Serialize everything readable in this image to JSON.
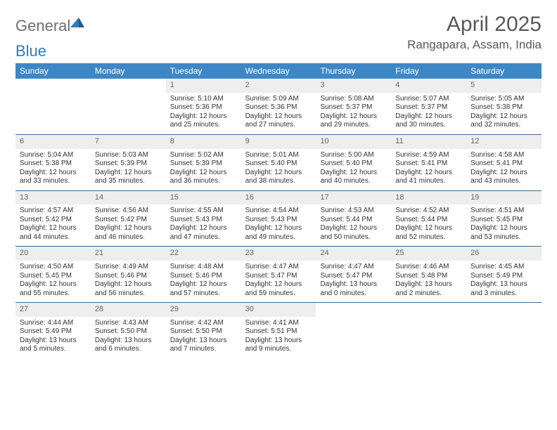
{
  "logo": {
    "word1": "General",
    "word2": "Blue"
  },
  "title": "April 2025",
  "location": "Rangapara, Assam, India",
  "header_bg": "#3d87c7",
  "header_text_color": "#ffffff",
  "daynum_bg": "#eeeeee",
  "week_divider_color": "#3d6a93",
  "text_color": "#333333",
  "title_color": "#595959",
  "logo_gray": "#6e6e6e",
  "logo_blue": "#2f7bbf",
  "weekdays": [
    "Sunday",
    "Monday",
    "Tuesday",
    "Wednesday",
    "Thursday",
    "Friday",
    "Saturday"
  ],
  "weeks": [
    [
      null,
      null,
      {
        "n": "1",
        "sr": "Sunrise: 5:10 AM",
        "ss": "Sunset: 5:36 PM",
        "dl": "Daylight: 12 hours and 25 minutes."
      },
      {
        "n": "2",
        "sr": "Sunrise: 5:09 AM",
        "ss": "Sunset: 5:36 PM",
        "dl": "Daylight: 12 hours and 27 minutes."
      },
      {
        "n": "3",
        "sr": "Sunrise: 5:08 AM",
        "ss": "Sunset: 5:37 PM",
        "dl": "Daylight: 12 hours and 29 minutes."
      },
      {
        "n": "4",
        "sr": "Sunrise: 5:07 AM",
        "ss": "Sunset: 5:37 PM",
        "dl": "Daylight: 12 hours and 30 minutes."
      },
      {
        "n": "5",
        "sr": "Sunrise: 5:05 AM",
        "ss": "Sunset: 5:38 PM",
        "dl": "Daylight: 12 hours and 32 minutes."
      }
    ],
    [
      {
        "n": "6",
        "sr": "Sunrise: 5:04 AM",
        "ss": "Sunset: 5:38 PM",
        "dl": "Daylight: 12 hours and 33 minutes."
      },
      {
        "n": "7",
        "sr": "Sunrise: 5:03 AM",
        "ss": "Sunset: 5:39 PM",
        "dl": "Daylight: 12 hours and 35 minutes."
      },
      {
        "n": "8",
        "sr": "Sunrise: 5:02 AM",
        "ss": "Sunset: 5:39 PM",
        "dl": "Daylight: 12 hours and 36 minutes."
      },
      {
        "n": "9",
        "sr": "Sunrise: 5:01 AM",
        "ss": "Sunset: 5:40 PM",
        "dl": "Daylight: 12 hours and 38 minutes."
      },
      {
        "n": "10",
        "sr": "Sunrise: 5:00 AM",
        "ss": "Sunset: 5:40 PM",
        "dl": "Daylight: 12 hours and 40 minutes."
      },
      {
        "n": "11",
        "sr": "Sunrise: 4:59 AM",
        "ss": "Sunset: 5:41 PM",
        "dl": "Daylight: 12 hours and 41 minutes."
      },
      {
        "n": "12",
        "sr": "Sunrise: 4:58 AM",
        "ss": "Sunset: 5:41 PM",
        "dl": "Daylight: 12 hours and 43 minutes."
      }
    ],
    [
      {
        "n": "13",
        "sr": "Sunrise: 4:57 AM",
        "ss": "Sunset: 5:42 PM",
        "dl": "Daylight: 12 hours and 44 minutes."
      },
      {
        "n": "14",
        "sr": "Sunrise: 4:56 AM",
        "ss": "Sunset: 5:42 PM",
        "dl": "Daylight: 12 hours and 46 minutes."
      },
      {
        "n": "15",
        "sr": "Sunrise: 4:55 AM",
        "ss": "Sunset: 5:43 PM",
        "dl": "Daylight: 12 hours and 47 minutes."
      },
      {
        "n": "16",
        "sr": "Sunrise: 4:54 AM",
        "ss": "Sunset: 5:43 PM",
        "dl": "Daylight: 12 hours and 49 minutes."
      },
      {
        "n": "17",
        "sr": "Sunrise: 4:53 AM",
        "ss": "Sunset: 5:44 PM",
        "dl": "Daylight: 12 hours and 50 minutes."
      },
      {
        "n": "18",
        "sr": "Sunrise: 4:52 AM",
        "ss": "Sunset: 5:44 PM",
        "dl": "Daylight: 12 hours and 52 minutes."
      },
      {
        "n": "19",
        "sr": "Sunrise: 4:51 AM",
        "ss": "Sunset: 5:45 PM",
        "dl": "Daylight: 12 hours and 53 minutes."
      }
    ],
    [
      {
        "n": "20",
        "sr": "Sunrise: 4:50 AM",
        "ss": "Sunset: 5:45 PM",
        "dl": "Daylight: 12 hours and 55 minutes."
      },
      {
        "n": "21",
        "sr": "Sunrise: 4:49 AM",
        "ss": "Sunset: 5:46 PM",
        "dl": "Daylight: 12 hours and 56 minutes."
      },
      {
        "n": "22",
        "sr": "Sunrise: 4:48 AM",
        "ss": "Sunset: 5:46 PM",
        "dl": "Daylight: 12 hours and 57 minutes."
      },
      {
        "n": "23",
        "sr": "Sunrise: 4:47 AM",
        "ss": "Sunset: 5:47 PM",
        "dl": "Daylight: 12 hours and 59 minutes."
      },
      {
        "n": "24",
        "sr": "Sunrise: 4:47 AM",
        "ss": "Sunset: 5:47 PM",
        "dl": "Daylight: 13 hours and 0 minutes."
      },
      {
        "n": "25",
        "sr": "Sunrise: 4:46 AM",
        "ss": "Sunset: 5:48 PM",
        "dl": "Daylight: 13 hours and 2 minutes."
      },
      {
        "n": "26",
        "sr": "Sunrise: 4:45 AM",
        "ss": "Sunset: 5:49 PM",
        "dl": "Daylight: 13 hours and 3 minutes."
      }
    ],
    [
      {
        "n": "27",
        "sr": "Sunrise: 4:44 AM",
        "ss": "Sunset: 5:49 PM",
        "dl": "Daylight: 13 hours and 5 minutes."
      },
      {
        "n": "28",
        "sr": "Sunrise: 4:43 AM",
        "ss": "Sunset: 5:50 PM",
        "dl": "Daylight: 13 hours and 6 minutes."
      },
      {
        "n": "29",
        "sr": "Sunrise: 4:42 AM",
        "ss": "Sunset: 5:50 PM",
        "dl": "Daylight: 13 hours and 7 minutes."
      },
      {
        "n": "30",
        "sr": "Sunrise: 4:41 AM",
        "ss": "Sunset: 5:51 PM",
        "dl": "Daylight: 13 hours and 9 minutes."
      },
      null,
      null,
      null
    ]
  ]
}
